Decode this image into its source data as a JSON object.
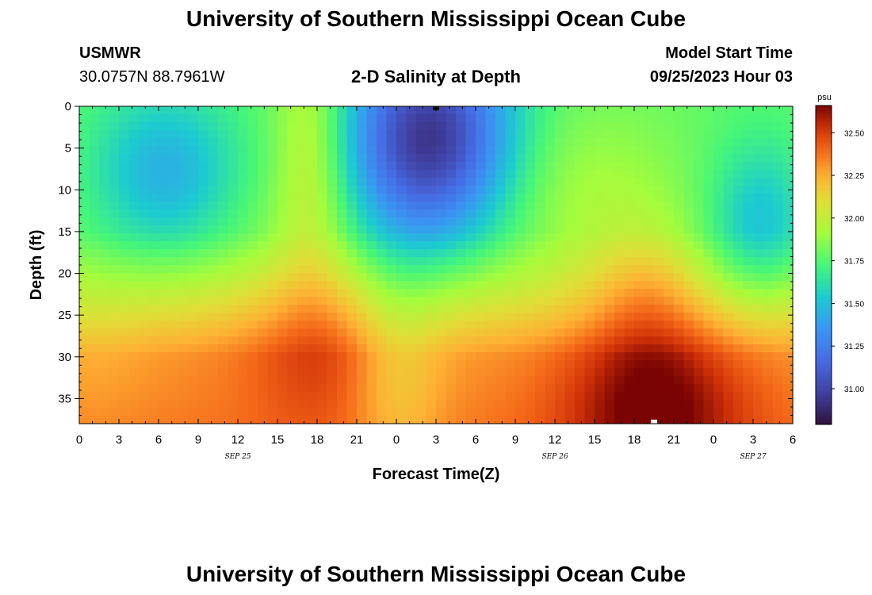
{
  "page": {
    "title": "University of Southern Mississippi Ocean Cube",
    "title_repeat": "University of Southern Mississippi Ocean Cube",
    "station": "USMWR",
    "coordinates": "30.0757N  88.7961W",
    "subtitle": "2-D Salinity at Depth",
    "model_start_label": "Model Start Time",
    "model_start_value": "09/25/2023 Hour 03"
  },
  "chart_data": {
    "type": "heatmap",
    "title": "2-D Salinity at Depth",
    "xlabel": "Forecast Time(Z)",
    "ylabel": "Depth (ft)",
    "x_range_hours": [
      0,
      54
    ],
    "x_tick_labels": [
      "0",
      "3",
      "6",
      "9",
      "12",
      "15",
      "18",
      "21",
      "0",
      "3",
      "6",
      "9",
      "12",
      "15",
      "18",
      "21",
      "0",
      "3",
      "6"
    ],
    "x_tick_hours": [
      0,
      3,
      6,
      9,
      12,
      15,
      18,
      21,
      24,
      27,
      30,
      33,
      36,
      39,
      42,
      45,
      48,
      51,
      54
    ],
    "day_labels": [
      {
        "text": "SEP 25",
        "hour": 12
      },
      {
        "text": "SEP 26",
        "hour": 36
      },
      {
        "text": "SEP 27",
        "hour": 51
      }
    ],
    "y_range_ft": [
      0,
      38
    ],
    "y_tick_labels": [
      "0",
      "5",
      "10",
      "15",
      "20",
      "25",
      "30",
      "35"
    ],
    "y_tick_values": [
      0,
      5,
      10,
      15,
      20,
      25,
      30,
      35
    ],
    "colorbar": {
      "unit": "psu",
      "min": 30.8,
      "max": 32.65,
      "tick_labels": [
        "31.00",
        "31.25",
        "31.50",
        "31.75",
        "32.00",
        "32.25",
        "32.50"
      ],
      "tick_values": [
        31.0,
        31.25,
        31.5,
        31.75,
        32.0,
        32.25,
        32.5
      ]
    },
    "salinity_model": {
      "base_profile": {
        "depth_ft": [
          0,
          15,
          20,
          25,
          30,
          38
        ],
        "psu": [
          31.78,
          31.82,
          31.95,
          32.12,
          32.3,
          32.35
        ]
      },
      "anomalies": [
        {
          "hour": 6.5,
          "depth_ft": 8,
          "amp": -0.35,
          "sigma_hours": 4.0,
          "sigma_ft": 7
        },
        {
          "hour": 26.5,
          "depth_ft": 4,
          "amp": -0.85,
          "sigma_hours": 4.5,
          "sigma_ft": 9
        },
        {
          "hour": 17.5,
          "depth_ft": 5,
          "amp": 0.25,
          "sigma_hours": 2.0,
          "sigma_ft": 12
        },
        {
          "hour": 18.5,
          "depth_ft": 28,
          "amp": 0.18,
          "sigma_hours": 4.5,
          "sigma_ft": 8
        },
        {
          "hour": 24,
          "depth_ft": 32,
          "amp": -0.2,
          "sigma_hours": 2.5,
          "sigma_ft": 10
        },
        {
          "hour": 43.5,
          "depth_ft": 36,
          "amp": 0.35,
          "sigma_hours": 5.0,
          "sigma_ft": 7
        },
        {
          "hour": 43,
          "depth_ft": 22,
          "amp": 0.2,
          "sigma_hours": 3.0,
          "sigma_ft": 6
        },
        {
          "hour": 51.5,
          "depth_ft": 14,
          "amp": -0.3,
          "sigma_hours": 2.8,
          "sigma_ft": 7
        },
        {
          "hour": 38,
          "depth_ft": 10,
          "amp": 0.12,
          "sigma_hours": 5.0,
          "sigma_ft": 8
        },
        {
          "hour": 1,
          "depth_ft": 30,
          "amp": -0.05,
          "sigma_hours": 3.0,
          "sigma_ft": 8
        }
      ]
    },
    "markers": [
      {
        "name": "black-marker",
        "hour": 27,
        "depth_ft": 0,
        "color": "#111111"
      },
      {
        "name": "white-marker",
        "hour": 43.5,
        "depth_ft": 38,
        "color": "#ffffff"
      }
    ]
  }
}
